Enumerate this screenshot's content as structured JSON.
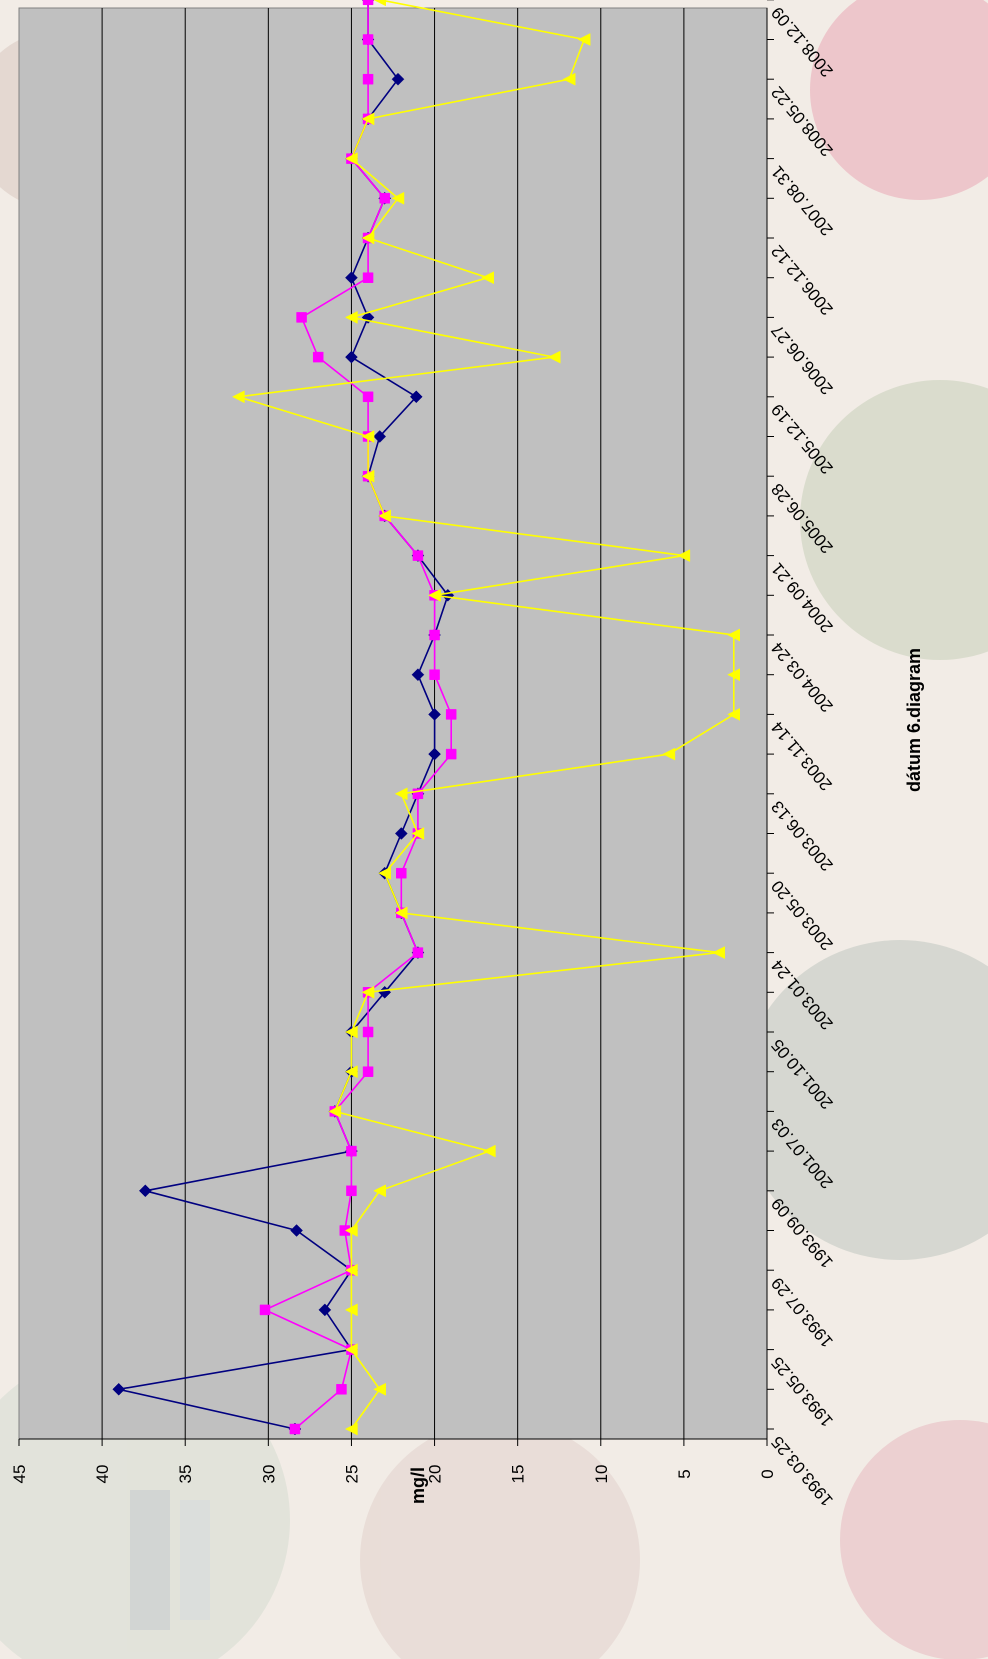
{
  "chart_data": {
    "type": "line",
    "ylabel": "mg/l",
    "xlabel": "dátum   6.diagram",
    "ylim": [
      0,
      45
    ],
    "yticks": [
      "0",
      "5",
      "10",
      "15",
      "20",
      "25",
      "30",
      "35",
      "40",
      "45"
    ],
    "x_labels": [
      "1993.03.25",
      "1993.05.25",
      "1993.07.29",
      "1993.09.09",
      "2001.07.03",
      "2001.10.05",
      "2003.01.24",
      "2003.05.20",
      "2003.06.13",
      "2003.11.14",
      "2004.03.24",
      "2004.09.21",
      "2005.06.28",
      "2005.12.19",
      "2006.06.27",
      "2006.12.12",
      "2007.08.31",
      "2008.05.22",
      "2008.12.09"
    ],
    "grid": true,
    "legend": "none",
    "series": [
      {
        "color": "#000080",
        "marker": "diamond",
        "values": [
          28.4,
          39.0,
          25.0,
          26.6,
          25.0,
          28.3,
          37.4,
          25.0,
          26.0,
          25.0,
          25.0,
          23.0,
          21.0,
          22.0,
          23.0,
          22.0,
          21.0,
          20.0,
          20.0,
          21.0,
          20.0,
          19.2,
          21.0,
          23.0,
          24.0,
          23.3,
          21.1,
          25.0,
          24.0,
          25.0,
          24.0,
          23.0,
          25.0,
          24.0,
          22.2,
          24.0,
          24.0
        ]
      },
      {
        "color": "#FF00FF",
        "marker": "square",
        "values": [
          28.4,
          25.6,
          25.0,
          30.2,
          25.0,
          25.4,
          25.0,
          25.0,
          26.0,
          24.0,
          24.0,
          24.0,
          21.0,
          22.0,
          22.0,
          21.0,
          21.0,
          19.0,
          19.0,
          20.0,
          20.0,
          20.0,
          21.0,
          23.0,
          24.0,
          24.0,
          24.0,
          27.0,
          28.0,
          24.0,
          24.0,
          23.0,
          25.0,
          24.0,
          24.0,
          24.0,
          24.0
        ]
      },
      {
        "color": "#FFFF00",
        "marker": "triangle",
        "values": [
          25.0,
          23.3,
          25.0,
          25.0,
          25.0,
          25.0,
          23.3,
          16.7,
          26.0,
          25.0,
          25.0,
          24.0,
          2.9,
          22.0,
          23.0,
          21.0,
          22.0,
          5.9,
          2.0,
          2.0,
          2.0,
          20.0,
          5.0,
          23.0,
          24.0,
          24.0,
          31.8,
          12.8,
          25.0,
          16.8,
          24.0,
          22.2,
          25.0,
          24.0,
          11.9,
          11.0,
          23.3
        ]
      }
    ]
  }
}
